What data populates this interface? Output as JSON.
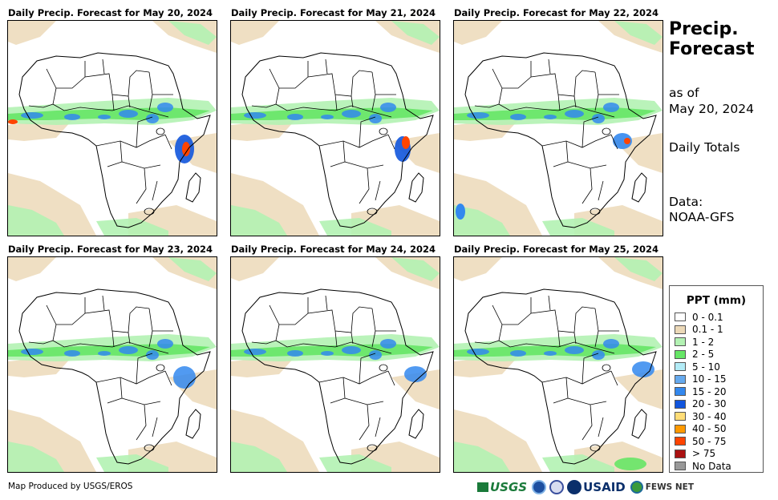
{
  "panels": [
    {
      "title": "Daily Precip. Forecast for May 20, 2024"
    },
    {
      "title": "Daily Precip. Forecast for May 21, 2024"
    },
    {
      "title": "Daily Precip. Forecast for May 22, 2024"
    },
    {
      "title": "Daily Precip. Forecast for May 23, 2024"
    },
    {
      "title": "Daily Precip. Forecast for May 24, 2024"
    },
    {
      "title": "Daily Precip. Forecast for May 25, 2024"
    }
  ],
  "side": {
    "title": "Precip. Forecast",
    "as_of_label": "as of",
    "as_of_date": "May 20, 2024",
    "totals": "Daily Totals",
    "data_label": "Data:",
    "data_source": "NOAA-GFS"
  },
  "legend": {
    "title": "PPT (mm)",
    "items": [
      {
        "label": "0 - 0.1",
        "color": "#ffffff"
      },
      {
        "label": "0.1 - 1",
        "color": "#ecd9b8"
      },
      {
        "label": "1 - 2",
        "color": "#b3f2b3"
      },
      {
        "label": "2 - 5",
        "color": "#66e666"
      },
      {
        "label": "5 - 10",
        "color": "#b3ecf7"
      },
      {
        "label": "10 - 15",
        "color": "#66aaee"
      },
      {
        "label": "15 - 20",
        "color": "#3388ee"
      },
      {
        "label": "20 - 30",
        "color": "#1155dd"
      },
      {
        "label": "30 - 40",
        "color": "#ffdd77"
      },
      {
        "label": "40 - 50",
        "color": "#ff9900"
      },
      {
        "label": "50 - 75",
        "color": "#ff4400"
      },
      {
        "label": "> 75",
        "color": "#aa1111"
      },
      {
        "label": "No Data",
        "color": "#999999"
      }
    ]
  },
  "footer": {
    "credit": "Map Produced by USGS/EROS"
  },
  "logos": {
    "usgs": "USGS",
    "usaid": "USAID",
    "fewsnet": "FEWS NET"
  },
  "colors": {
    "tan": "#ecd9b8",
    "lightgreen": "#b3f2b3",
    "green": "#66e666",
    "lightblue": "#66aaee",
    "blue": "#3388ee",
    "darkblue": "#1155dd",
    "orange": "#ff9900",
    "red": "#ff4400",
    "darkred": "#aa1111"
  }
}
